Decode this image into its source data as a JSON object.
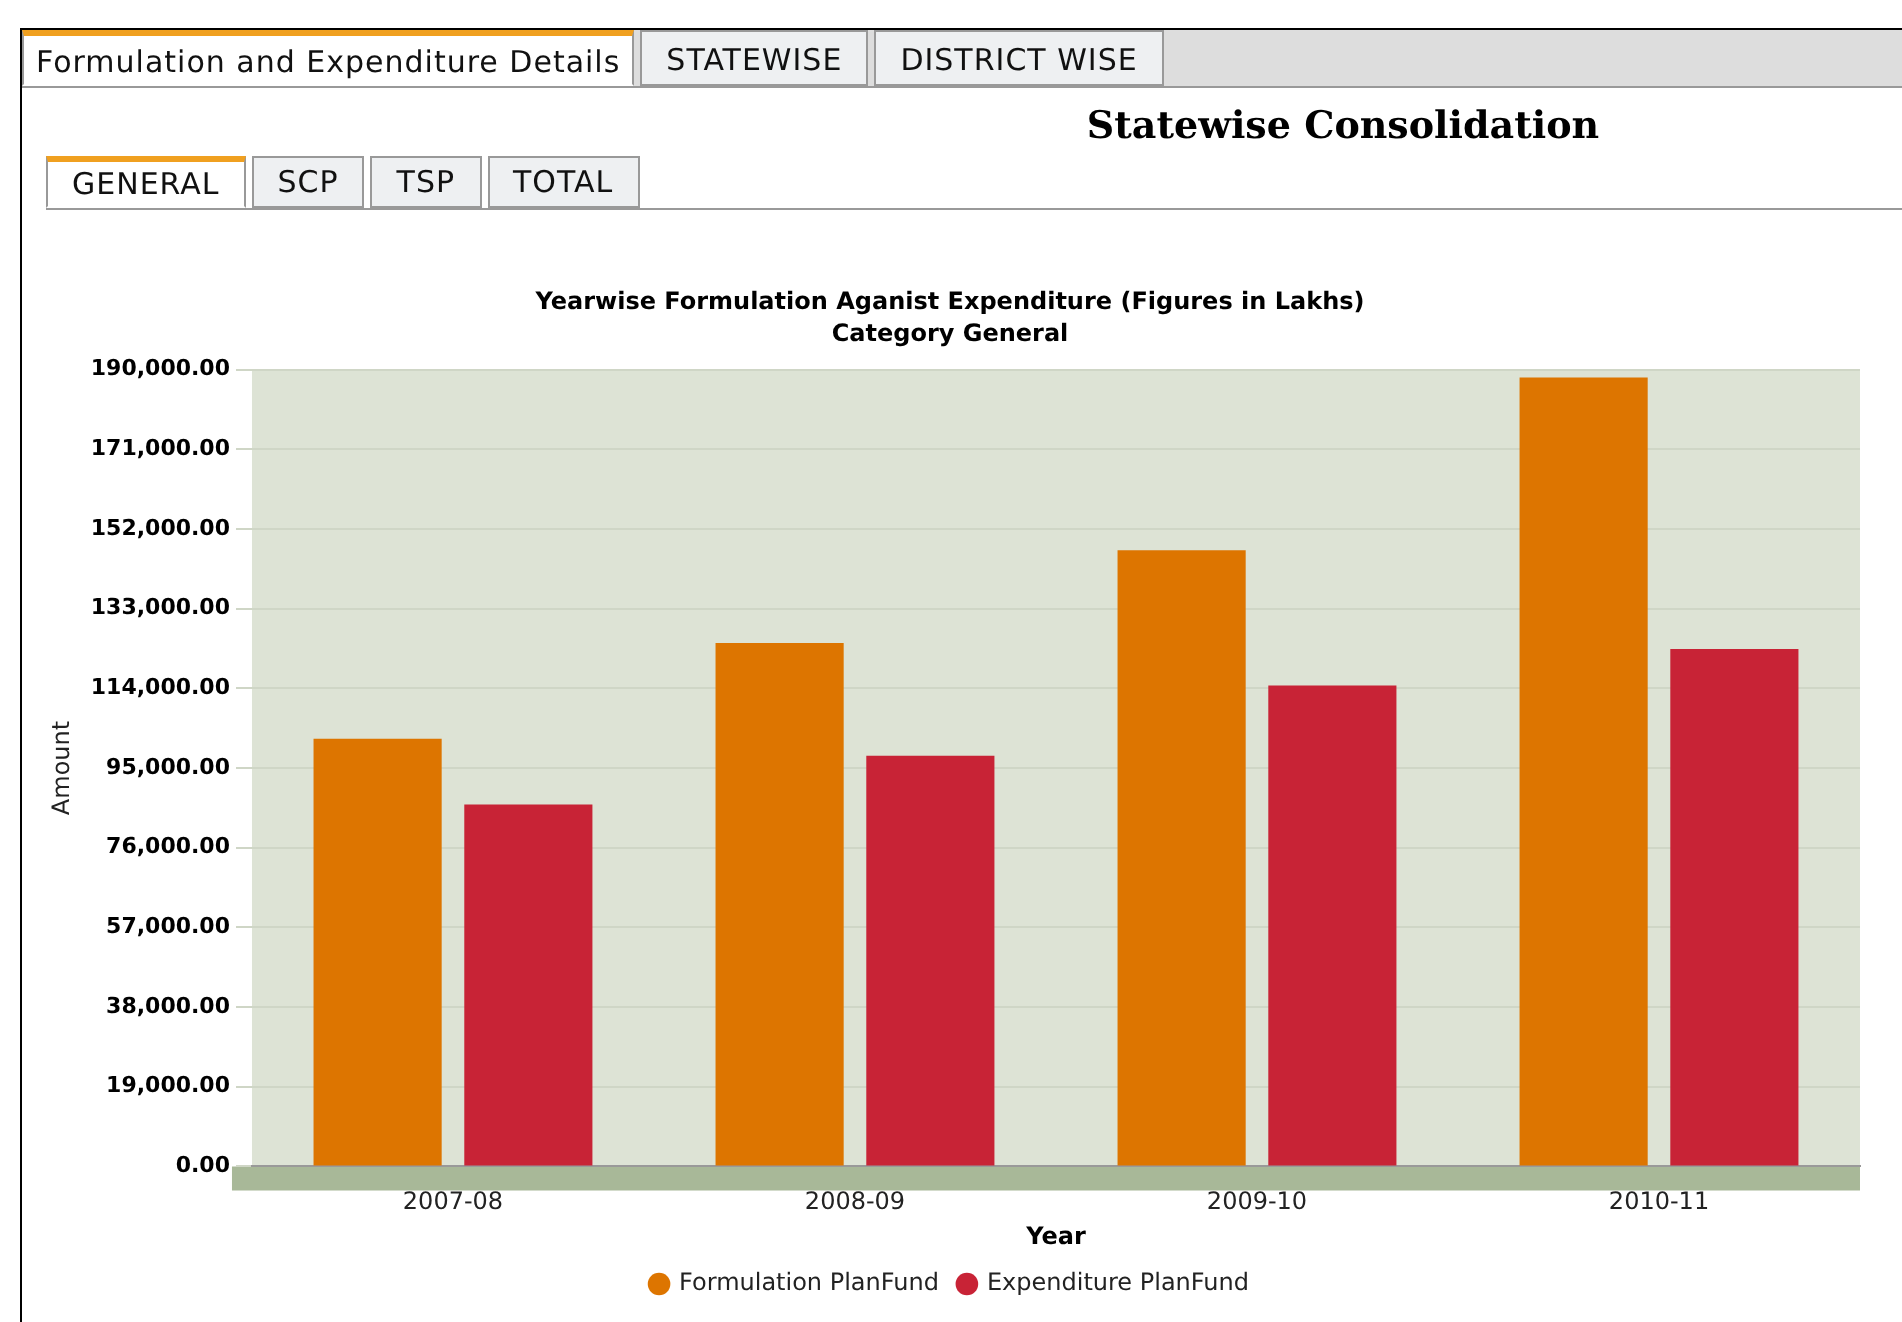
{
  "chart_data": {
    "type": "bar",
    "title": "Yearwise Formulation Aganist Expenditure (Figures in Lakhs)",
    "subtitle": "Category General",
    "xlabel": "Year",
    "ylabel": "Amount",
    "annotations": [
      "Formulation and Expenditure Details",
      "STATEWISE",
      "DISTRICT WISE",
      "Statewise Consolidation",
      "GENERAL",
      "SCP",
      "TSP",
      "TOTAL"
    ],
    "categories": [
      "2007-08",
      "2008-09",
      "2009-10",
      "2010-11"
    ],
    "series": [
      {
        "name": "Formulation PlanFund",
        "color": "#dd7500",
        "values": [
          102000,
          124800,
          146900,
          188100
        ]
      },
      {
        "name": "Expenditure PlanFund",
        "color": "#c82336",
        "values": [
          86300,
          97900,
          114700,
          123400
        ]
      }
    ],
    "ylim": [
      0,
      190000
    ],
    "yticks": [
      {
        "value": 0,
        "label": "0.00"
      },
      {
        "value": 19000,
        "label": "19,000.00"
      },
      {
        "value": 38000,
        "label": "38,000.00"
      },
      {
        "value": 57000,
        "label": "57,000.00"
      },
      {
        "value": 76000,
        "label": "76,000.00"
      },
      {
        "value": 95000,
        "label": "95,000.00"
      },
      {
        "value": 114000,
        "label": "114,000.00"
      },
      {
        "value": 133000,
        "label": "133,000.00"
      },
      {
        "value": 152000,
        "label": "152,000.00"
      },
      {
        "value": 171000,
        "label": "171,000.00"
      },
      {
        "value": 190000,
        "label": "190,000.00"
      }
    ],
    "grid": "y",
    "legend": "bottom"
  }
}
